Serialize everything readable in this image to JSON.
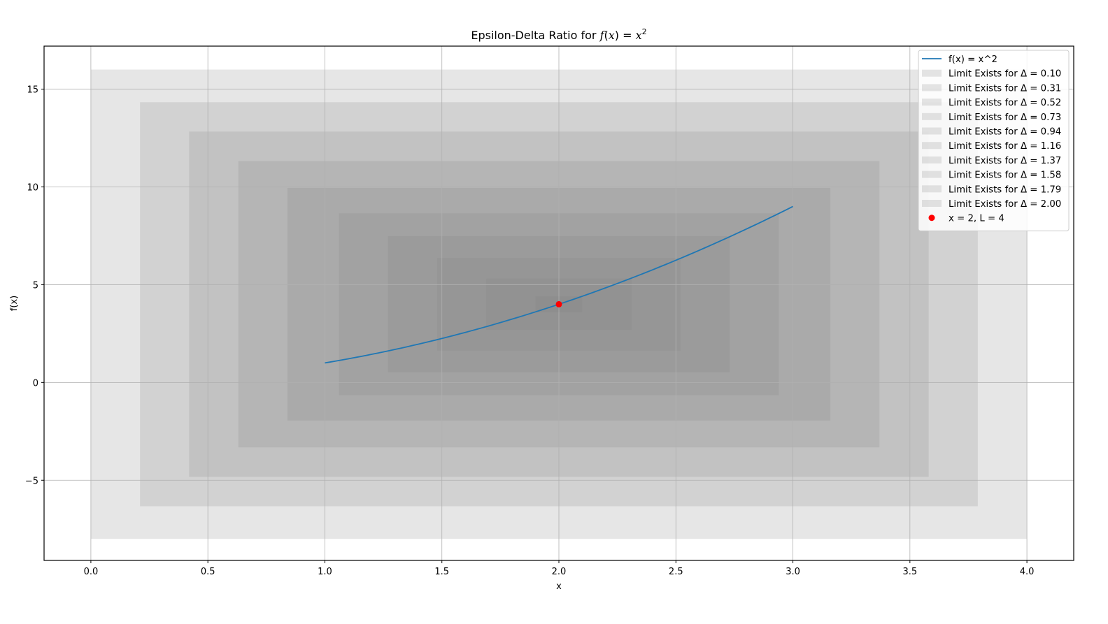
{
  "chart_data": {
    "type": "line",
    "title_prefix": "Epsilon-Delta Ratio for ",
    "title_math": {
      "f": "f",
      "open": "(",
      "var": "x",
      "close": ")",
      "eq": " = ",
      "base": "x",
      "exp": "2"
    },
    "xlabel": "x",
    "ylabel": "f(x)",
    "xlim": [
      -0.2,
      4.2
    ],
    "ylim": [
      -9.1,
      17.2
    ],
    "xticks": [
      0.0,
      0.5,
      1.0,
      1.5,
      2.0,
      2.5,
      3.0,
      3.5,
      4.0
    ],
    "xtick_labels": [
      "0.0",
      "0.5",
      "1.0",
      "1.5",
      "2.0",
      "2.5",
      "3.0",
      "3.5",
      "4.0"
    ],
    "yticks": [
      -5,
      0,
      5,
      10,
      15
    ],
    "ytick_labels": [
      "−5",
      "0",
      "5",
      "10",
      "15"
    ],
    "grid": true,
    "legend_position": "top-right",
    "curve": {
      "name": "f(x) = x^2",
      "color": "#1f77b4",
      "x_start": 1.0,
      "x_end": 3.0,
      "x": [
        1.0,
        1.25,
        1.5,
        1.75,
        2.0,
        2.25,
        2.5,
        2.75,
        3.0
      ],
      "y": [
        1.0,
        1.5625,
        2.25,
        3.0625,
        4.0,
        5.0625,
        6.25,
        7.5625,
        9.0
      ]
    },
    "point": {
      "name": "x = 2, L = 4",
      "x": 2,
      "y": 4,
      "color": "#ff0000"
    },
    "regions": [
      {
        "name": "Limit Exists for Δ = 0.10",
        "delta": 0.1,
        "x0": 1.9,
        "x1": 2.1,
        "y0": 3.59,
        "y1": 4.41
      },
      {
        "name": "Limit Exists for Δ = 0.31",
        "delta": 0.31,
        "x0": 1.69,
        "x1": 2.31,
        "y0": 2.69,
        "y1": 5.31
      },
      {
        "name": "Limit Exists for Δ = 0.52",
        "delta": 0.52,
        "x0": 1.48,
        "x1": 2.52,
        "y0": 1.63,
        "y1": 6.37
      },
      {
        "name": "Limit Exists for Δ = 0.73",
        "delta": 0.73,
        "x0": 1.27,
        "x1": 2.73,
        "y0": 0.52,
        "y1": 7.48
      },
      {
        "name": "Limit Exists for Δ = 0.94",
        "delta": 0.94,
        "x0": 1.06,
        "x1": 2.94,
        "y0": -0.65,
        "y1": 8.65
      },
      {
        "name": "Limit Exists for Δ = 1.16",
        "delta": 1.16,
        "x0": 0.84,
        "x1": 3.16,
        "y0": -1.95,
        "y1": 9.95
      },
      {
        "name": "Limit Exists for Δ = 1.37",
        "delta": 1.37,
        "x0": 0.63,
        "x1": 3.37,
        "y0": -3.32,
        "y1": 11.32
      },
      {
        "name": "Limit Exists for Δ = 1.58",
        "delta": 1.58,
        "x0": 0.42,
        "x1": 3.58,
        "y0": -4.83,
        "y1": 12.83
      },
      {
        "name": "Limit Exists for Δ = 1.79",
        "delta": 1.79,
        "x0": 0.21,
        "x1": 3.79,
        "y0": -6.33,
        "y1": 14.33
      },
      {
        "name": "Limit Exists for Δ = 2.00",
        "delta": 2.0,
        "x0": 0.0,
        "x1": 4.0,
        "y0": -8.0,
        "y1": 16.0
      }
    ],
    "region_color": "#808080",
    "region_opacity": 0.2
  }
}
